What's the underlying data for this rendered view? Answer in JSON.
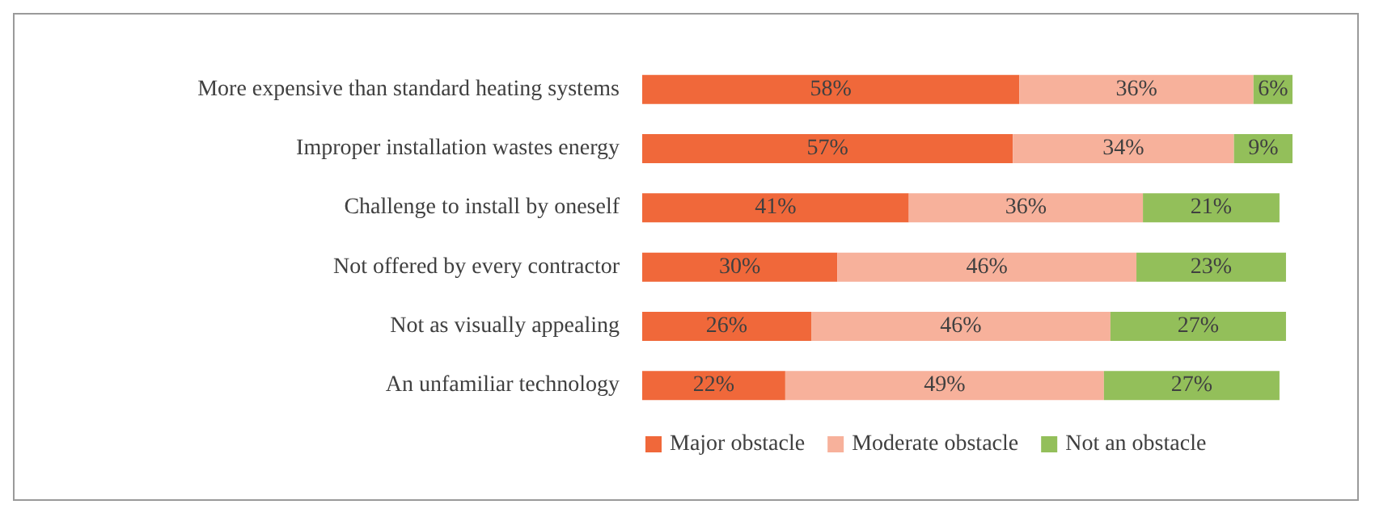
{
  "chart_data": {
    "type": "bar",
    "orientation": "horizontal",
    "stacked": true,
    "legend": "bottom",
    "categories": [
      "More expensive than standard heating systems",
      "Improper installation wastes energy",
      "Challenge to install by oneself",
      "Not offered by every contractor",
      "Not as visually appealing",
      "An unfamiliar technology"
    ],
    "series": [
      {
        "name": "Major obstacle",
        "color": "#f0683a",
        "values": [
          58,
          57,
          41,
          30,
          26,
          22
        ],
        "value_labels": [
          "58%",
          "57%",
          "41%",
          "30%",
          "26%",
          "22%"
        ]
      },
      {
        "name": "Moderate obstacle",
        "color": "#f7b19b",
        "values": [
          36,
          34,
          36,
          46,
          46,
          49
        ],
        "value_labels": [
          "36%",
          "34%",
          "36%",
          "46%",
          "46%",
          "49%"
        ]
      },
      {
        "name": "Not an obstacle",
        "color": "#93bf5a",
        "values": [
          6,
          9,
          21,
          23,
          27,
          27
        ],
        "value_labels": [
          "6%",
          "9%",
          "21%",
          "23%",
          "27%",
          "27%"
        ]
      }
    ]
  }
}
